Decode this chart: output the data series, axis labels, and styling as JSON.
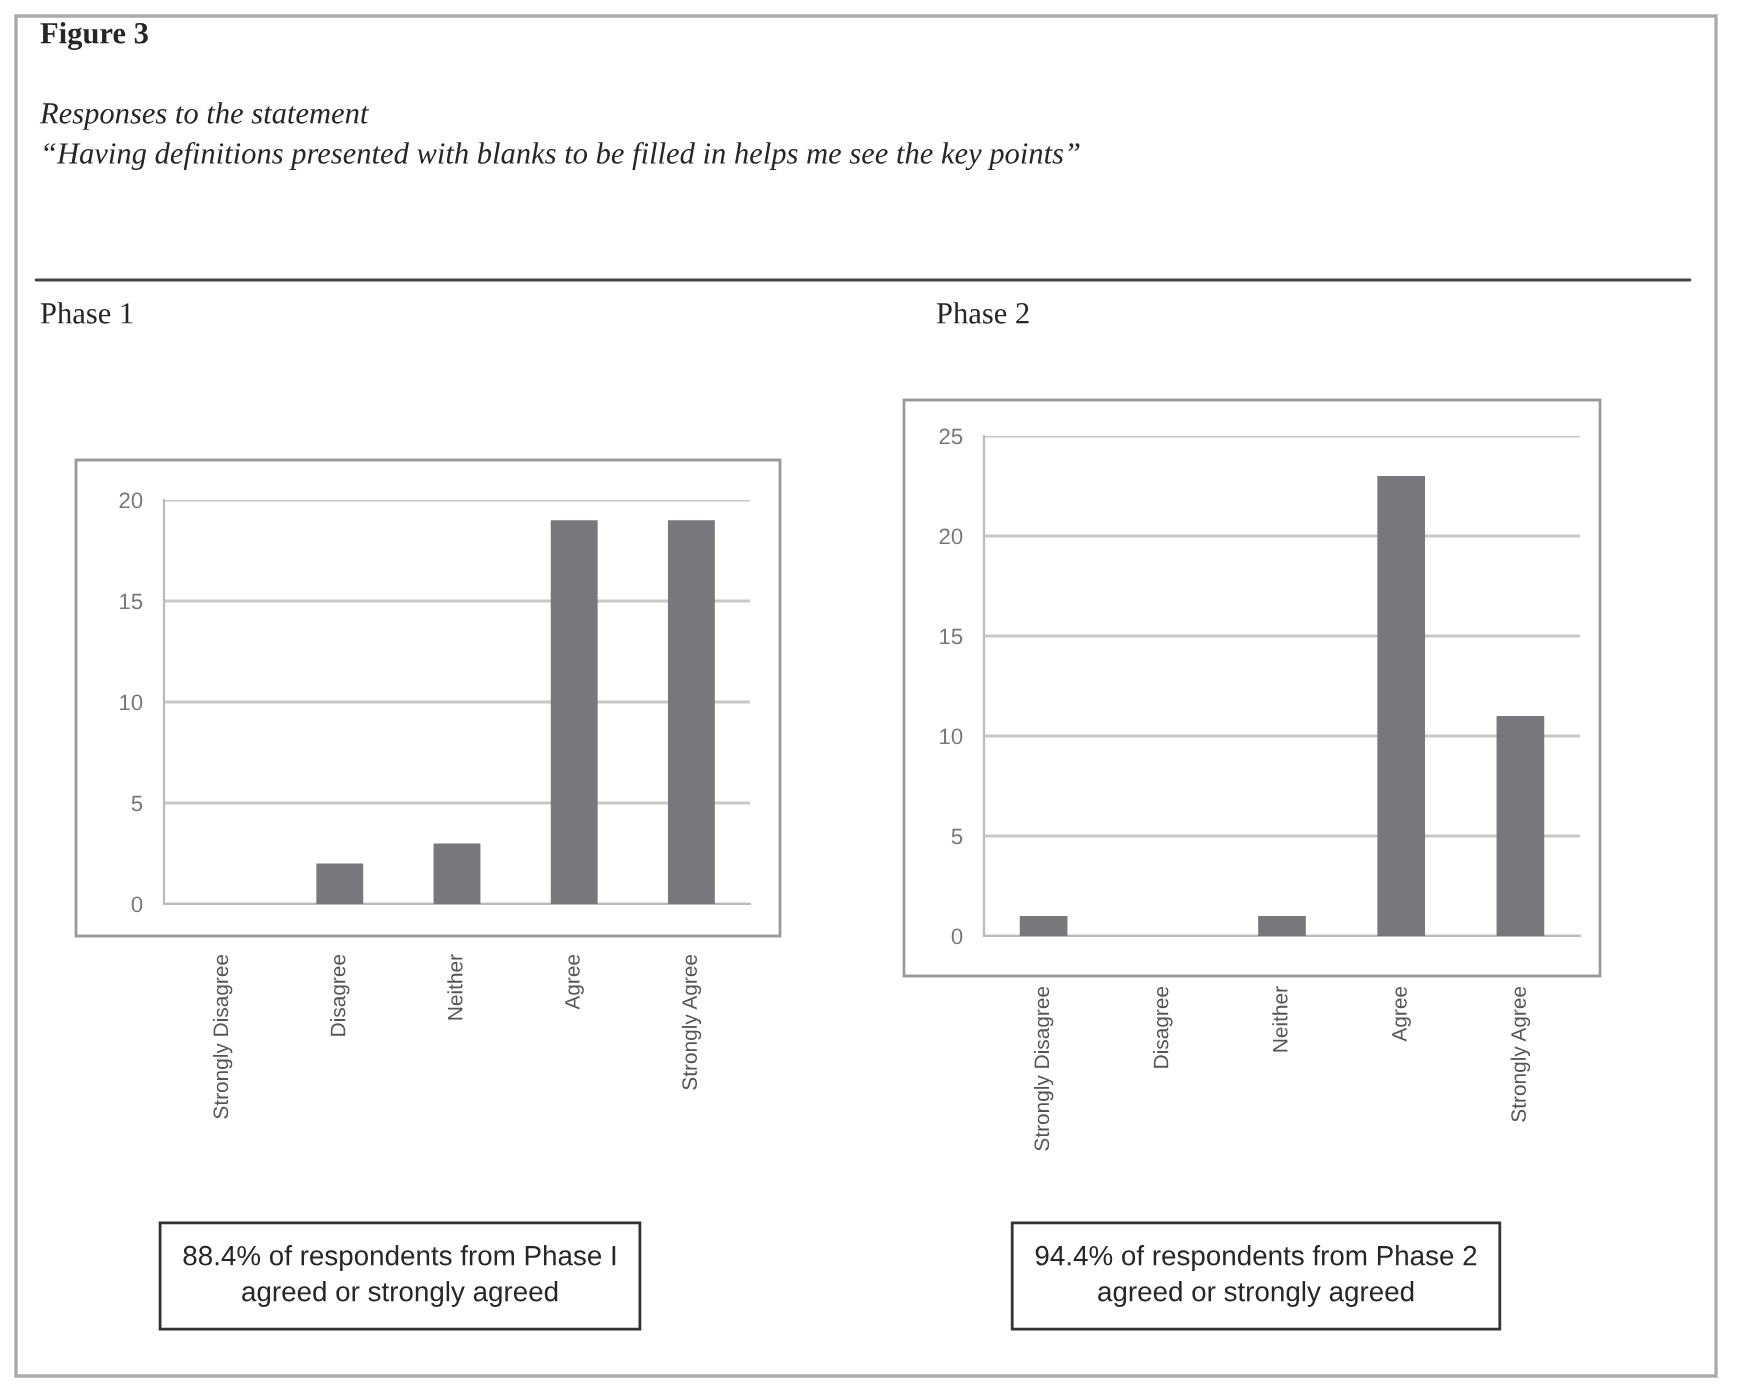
{
  "chart_data": [
    {
      "type": "bar",
      "title": "Phase 1",
      "categories": [
        "Strongly Disagree",
        "Disagree",
        "Neither",
        "Agree",
        "Strongly Agree"
      ],
      "values": [
        0,
        2,
        3,
        19,
        19
      ],
      "color": "#77787c",
      "ylim": [
        0,
        20
      ],
      "yticks": [
        0,
        5,
        10,
        15,
        20
      ],
      "grid": "y",
      "annotations": [
        "Figure 3",
        "Responses to the statement",
        "“Having definitions presented with blanks to be filled in helps me see the key points”",
        "88.4% of respondents from Phase I\nagreed or strongly agreed"
      ]
    },
    {
      "type": "bar",
      "title": "Phase 2",
      "categories": [
        "Strongly Disagree",
        "Disagree",
        "Neither",
        "Agree",
        "Strongly Agree"
      ],
      "values": [
        1,
        0,
        1,
        23,
        11
      ],
      "color": "#77787c",
      "ylim": [
        0,
        25
      ],
      "yticks": [
        0,
        5,
        10,
        15,
        20,
        25
      ],
      "grid": "y",
      "annotations": [
        "94.4% of respondents from Phase 2\nagreed or strongly agreed"
      ]
    }
  ]
}
